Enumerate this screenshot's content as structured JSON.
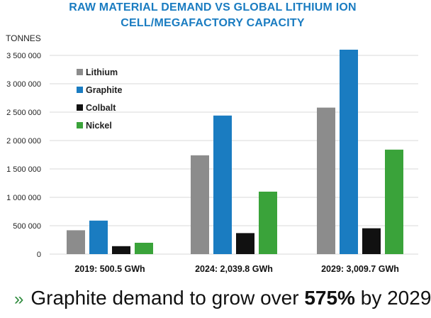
{
  "header": {
    "title_line1": "RAW MATERIAL DEMAND VS GLOBAL LITHIUM ION",
    "title_line2": "CELL/MEGAFACTORY CAPACITY"
  },
  "footer": {
    "bullet": "»",
    "text_before": "Graphite demand to grow over ",
    "highlight": "575%",
    "text_after": " by 2029"
  },
  "chart_data": {
    "type": "bar",
    "title": "RAW MATERIAL DEMAND VS GLOBAL LITHIUM ION CELL/MEGAFACTORY CAPACITY",
    "ylabel": "TONNES",
    "xlabel": "",
    "ylim": [
      0,
      3500000
    ],
    "yticks": [
      0,
      500000,
      1000000,
      1500000,
      2000000,
      2500000,
      3000000,
      3500000
    ],
    "ytick_labels": [
      "0",
      "500 000",
      "1 000 000",
      "1 500 000",
      "2 000 000",
      "2 500 000",
      "3 000 000",
      "3 500 000"
    ],
    "grid": true,
    "legend_position": "top-left",
    "categories": [
      "2019: 500.5 GWh",
      "2024: 2,039.8 GWh",
      "2029: 3,009.7 GWh"
    ],
    "series": [
      {
        "name": "Lithium",
        "color": "#8c8c8c",
        "values": [
          420000,
          1740000,
          2580000
        ]
      },
      {
        "name": "Graphite",
        "color": "#1a7cc1",
        "values": [
          590000,
          2440000,
          3600000
        ]
      },
      {
        "name": "Colbalt",
        "color": "#111111",
        "values": [
          140000,
          370000,
          455000
        ]
      },
      {
        "name": "Nickel",
        "color": "#3aa33a",
        "values": [
          200000,
          1100000,
          1840000
        ]
      }
    ]
  }
}
